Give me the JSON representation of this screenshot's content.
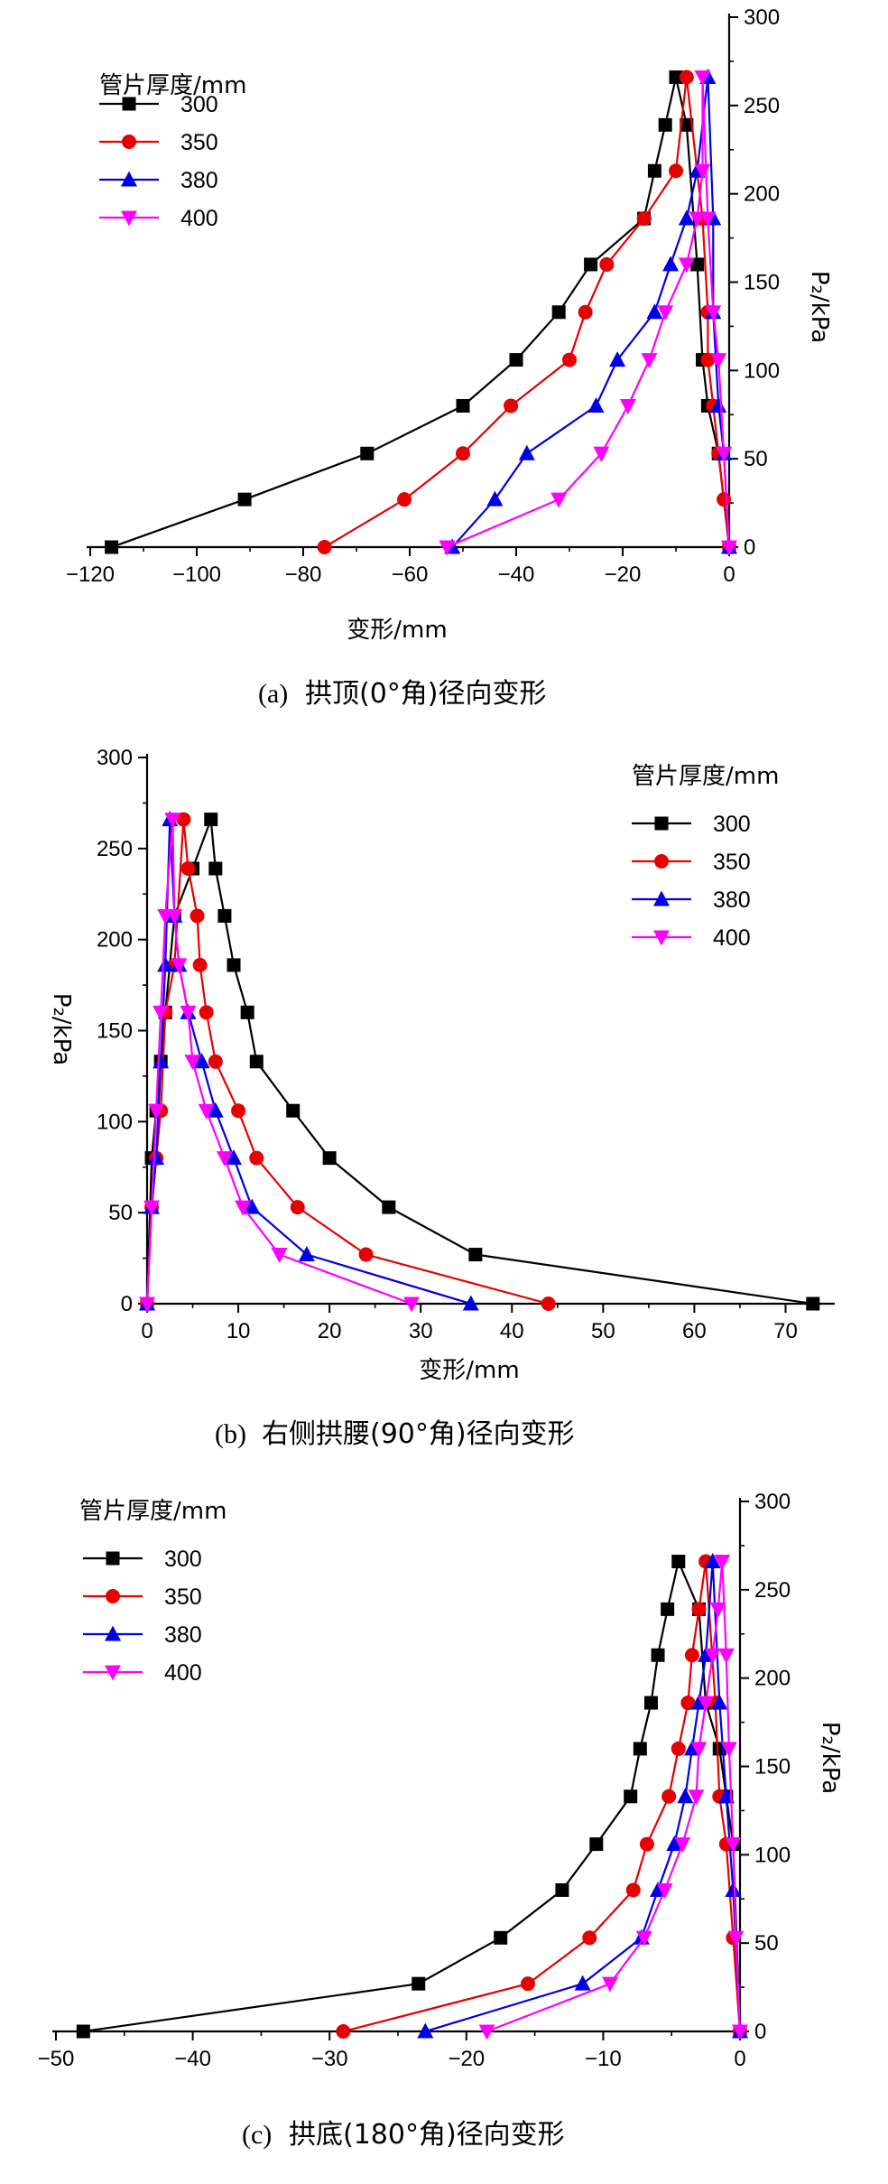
{
  "chart_data": [
    {
      "type": "line",
      "panel": "a",
      "caption": {
        "label": "(a)",
        "text": "拱顶(0°角)径向变形"
      },
      "xlabel": "变形/mm",
      "ylabel": "P₂/kPa",
      "xlim": [
        -120,
        0
      ],
      "ylim": [
        0,
        300
      ],
      "xticks": [
        -120,
        -100,
        -80,
        -60,
        -40,
        -20,
        0
      ],
      "xtick_labels": [
        "−120",
        "−100",
        "−80",
        "−60",
        "−40",
        "−20",
        "0"
      ],
      "yticks": [
        0,
        50,
        100,
        150,
        200,
        250,
        300
      ],
      "ytick_labels": [
        "0",
        "50",
        "100",
        "150",
        "200",
        "250",
        "300"
      ],
      "y_axis_side": "right",
      "legend_title": "管片厚度/mm",
      "legend_position": "top-left",
      "series": [
        {
          "name": "300",
          "color": "#000000",
          "marker": "square",
          "x": [
            -116,
            -91,
            -68,
            -50,
            -40,
            -32,
            -26,
            -16,
            -14,
            -12,
            -10,
            -8,
            -6,
            -5,
            -4,
            -2,
            0
          ],
          "y": [
            0,
            27,
            53,
            80,
            106,
            133,
            160,
            186,
            213,
            239,
            266,
            239,
            160,
            106,
            80,
            53,
            0
          ]
        },
        {
          "name": "350",
          "color": "#e60000",
          "marker": "circle",
          "x": [
            -76,
            -61,
            -50,
            -41,
            -30,
            -27,
            -23,
            -16,
            -10,
            -8,
            -5,
            -4,
            -4,
            -3,
            -2,
            -1,
            0
          ],
          "y": [
            0,
            27,
            53,
            80,
            106,
            133,
            160,
            186,
            213,
            266,
            186,
            133,
            106,
            80,
            53,
            27,
            0
          ]
        },
        {
          "name": "380",
          "color": "#0000e6",
          "marker": "triangle-up",
          "x": [
            -52,
            -44,
            -38,
            -25,
            -21,
            -14,
            -11,
            -8,
            -6,
            -4,
            -3,
            -3,
            -2,
            -1,
            0
          ],
          "y": [
            0,
            27,
            53,
            80,
            106,
            133,
            160,
            186,
            213,
            266,
            186,
            133,
            80,
            53,
            0
          ]
        },
        {
          "name": "400",
          "color": "#ff00ff",
          "marker": "triangle-down",
          "x": [
            -53,
            -32,
            -24,
            -19,
            -15,
            -12,
            -8,
            -6,
            -5,
            -5,
            -4,
            -3,
            -2,
            -1,
            0
          ],
          "y": [
            0,
            27,
            53,
            80,
            106,
            133,
            160,
            186,
            213,
            266,
            186,
            133,
            106,
            53,
            0
          ]
        }
      ]
    },
    {
      "type": "line",
      "panel": "b",
      "caption": {
        "label": "(b)",
        "text": "右侧拱腰(90°角)径向变形"
      },
      "xlabel": "变形/mm",
      "ylabel": "P₂/kPa",
      "xlim": [
        0,
        75
      ],
      "ylim": [
        0,
        300
      ],
      "xticks": [
        0,
        10,
        20,
        30,
        40,
        50,
        60,
        70
      ],
      "xtick_labels": [
        "0",
        "10",
        "20",
        "30",
        "40",
        "50",
        "60",
        "70"
      ],
      "yticks": [
        0,
        50,
        100,
        150,
        200,
        250,
        300
      ],
      "ytick_labels": [
        "0",
        "50",
        "100",
        "150",
        "200",
        "250",
        "300"
      ],
      "y_axis_side": "left",
      "legend_title": "管片厚度/mm",
      "legend_position": "top-right",
      "series": [
        {
          "name": "300",
          "color": "#000000",
          "marker": "square",
          "x": [
            73,
            36,
            26.5,
            20,
            16,
            12,
            11,
            9.5,
            8.5,
            7.5,
            7,
            5,
            3,
            2,
            1.5,
            1,
            0.5,
            0
          ],
          "y": [
            0,
            27,
            53,
            80,
            106,
            133,
            160,
            186,
            213,
            239,
            266,
            239,
            213,
            160,
            133,
            106,
            80,
            0
          ]
        },
        {
          "name": "350",
          "color": "#e60000",
          "marker": "circle",
          "x": [
            44,
            24,
            16.5,
            12,
            10,
            7.5,
            6.5,
            5.8,
            5.5,
            4.5,
            4,
            3,
            2,
            1.5,
            1,
            0.5,
            0
          ],
          "y": [
            0,
            27,
            53,
            80,
            106,
            133,
            160,
            186,
            213,
            239,
            266,
            186,
            160,
            106,
            80,
            53,
            0
          ]
        },
        {
          "name": "380",
          "color": "#0000e6",
          "marker": "triangle-up",
          "x": [
            35.5,
            17.5,
            11.5,
            9.5,
            7.5,
            6,
            4.5,
            3.5,
            3,
            2.5,
            2,
            1.5,
            1,
            0.5,
            0
          ],
          "y": [
            0,
            27,
            53,
            80,
            106,
            133,
            160,
            186,
            213,
            266,
            186,
            133,
            80,
            53,
            0
          ]
        },
        {
          "name": "400",
          "color": "#ff00ff",
          "marker": "triangle-down",
          "x": [
            29,
            14.5,
            10.5,
            8.5,
            6.5,
            5,
            4.5,
            3.5,
            3,
            2.8,
            2,
            1.5,
            1,
            0.5,
            0
          ],
          "y": [
            0,
            27,
            53,
            80,
            106,
            133,
            160,
            186,
            213,
            266,
            213,
            160,
            106,
            53,
            0
          ]
        }
      ]
    },
    {
      "type": "line",
      "panel": "c",
      "caption": {
        "label": "(c)",
        "text": "拱底(180°角)径向变形"
      },
      "xlabel": "",
      "ylabel": "P₂/kPa",
      "xlim": [
        -50,
        0
      ],
      "ylim": [
        0,
        300
      ],
      "xticks": [
        -50,
        -40,
        -30,
        -20,
        -10,
        0
      ],
      "xtick_labels": [
        "−50",
        "−40",
        "−30",
        "−20",
        "−10",
        "0"
      ],
      "yticks": [
        0,
        50,
        100,
        150,
        200,
        250,
        300
      ],
      "ytick_labels": [
        "0",
        "50",
        "100",
        "150",
        "200",
        "250",
        "300"
      ],
      "y_axis_side": "right",
      "legend_title": "管片厚度/mm",
      "legend_position": "top-left",
      "series": [
        {
          "name": "300",
          "color": "#000000",
          "marker": "square",
          "x": [
            -48,
            -23.5,
            -17.5,
            -13,
            -10.5,
            -8,
            -7.3,
            -6.5,
            -6,
            -5.3,
            -4.5,
            -3,
            -2.5,
            -1.5,
            -1,
            -0.5,
            0
          ],
          "y": [
            0,
            27,
            53,
            80,
            106,
            133,
            160,
            186,
            213,
            239,
            266,
            239,
            186,
            160,
            133,
            106,
            0
          ]
        },
        {
          "name": "350",
          "color": "#e60000",
          "marker": "circle",
          "x": [
            -29,
            -15.5,
            -11,
            -7.8,
            -6.8,
            -5.2,
            -4.5,
            -3.8,
            -3.5,
            -3,
            -2.5,
            -1.8,
            -1.5,
            -1,
            -0.5,
            0
          ],
          "y": [
            0,
            27,
            53,
            80,
            106,
            133,
            160,
            186,
            213,
            239,
            266,
            186,
            133,
            106,
            53,
            0
          ]
        },
        {
          "name": "380",
          "color": "#0000e6",
          "marker": "triangle-up",
          "x": [
            -23,
            -11.5,
            -7.2,
            -6,
            -4.8,
            -4,
            -3.5,
            -3,
            -2.5,
            -2,
            -1.5,
            -1,
            -0.5,
            0
          ],
          "y": [
            0,
            27,
            53,
            80,
            106,
            133,
            160,
            186,
            213,
            266,
            186,
            133,
            80,
            0
          ]
        },
        {
          "name": "400",
          "color": "#ff00ff",
          "marker": "triangle-down",
          "x": [
            -18.5,
            -9.5,
            -7,
            -5.5,
            -4.2,
            -3.2,
            -3,
            -2.5,
            -2,
            -1.6,
            -1.3,
            -1,
            -0.8,
            -0.5,
            -0.3,
            0
          ],
          "y": [
            0,
            27,
            53,
            80,
            106,
            133,
            160,
            186,
            213,
            239,
            266,
            213,
            160,
            106,
            53,
            0
          ]
        }
      ]
    }
  ]
}
